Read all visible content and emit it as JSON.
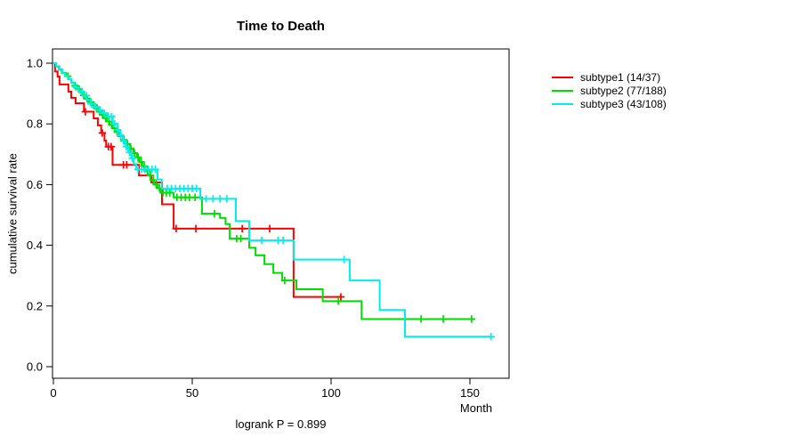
{
  "chart_data": {
    "type": "line",
    "variant": "kaplan-meier-step-survival",
    "title": "Time to Death",
    "xlabel": "Month",
    "ylabel": "cumulative survival rate",
    "annotation": "logrank P = 0.899",
    "xlim": [
      0,
      164
    ],
    "ylim": [
      0,
      1.0
    ],
    "grid": false,
    "legend_position": "right-outside",
    "x_ticks": [
      {
        "value": 0,
        "label": "0"
      },
      {
        "value": 50,
        "label": "50"
      },
      {
        "value": 100,
        "label": "100"
      },
      {
        "value": 150,
        "label": "150"
      }
    ],
    "y_ticks": [
      {
        "value": 0.0,
        "label": "0.0"
      },
      {
        "value": 0.2,
        "label": "0.2"
      },
      {
        "value": 0.4,
        "label": "0.4"
      },
      {
        "value": 0.6,
        "label": "0.6"
      },
      {
        "value": 0.8,
        "label": "0.8"
      },
      {
        "value": 1.0,
        "label": "1.0"
      }
    ],
    "series": [
      {
        "name": "subtype1 (14/37)",
        "color": "#ff0000",
        "steps": [
          [
            0,
            1.0
          ],
          [
            0.6,
            0.973
          ],
          [
            1.5,
            0.956
          ],
          [
            2.2,
            0.93
          ],
          [
            5.4,
            0.906
          ],
          [
            6.4,
            0.886
          ],
          [
            8,
            0.868
          ],
          [
            11,
            0.84
          ],
          [
            14.5,
            0.818
          ],
          [
            16,
            0.795
          ],
          [
            17.2,
            0.77
          ],
          [
            18.4,
            0.745
          ],
          [
            19,
            0.725
          ],
          [
            21.3,
            0.665
          ],
          [
            30.8,
            0.63
          ],
          [
            35.3,
            0.607
          ],
          [
            39.1,
            0.535
          ],
          [
            43.3,
            0.455
          ],
          [
            86.5,
            0.23
          ]
        ],
        "end_month": 104,
        "censor_months": [
          11.5,
          17.6,
          19.8,
          20.8,
          25.2,
          26.4,
          44.2,
          51.3,
          68,
          77.9,
          103.5
        ]
      },
      {
        "name": "subtype2 (77/188)",
        "color": "#00dd00",
        "steps": [
          [
            0,
            1.0
          ],
          [
            1,
            0.989
          ],
          [
            2,
            0.979
          ],
          [
            3,
            0.968
          ],
          [
            4.5,
            0.957
          ],
          [
            5.5,
            0.947
          ],
          [
            6.5,
            0.936
          ],
          [
            7.5,
            0.926
          ],
          [
            8.5,
            0.915
          ],
          [
            9.5,
            0.904
          ],
          [
            10.5,
            0.894
          ],
          [
            11.7,
            0.883
          ],
          [
            12.8,
            0.872
          ],
          [
            14,
            0.862
          ],
          [
            15,
            0.851
          ],
          [
            16,
            0.84
          ],
          [
            17,
            0.83
          ],
          [
            18.1,
            0.819
          ],
          [
            19.2,
            0.808
          ],
          [
            20.2,
            0.797
          ],
          [
            21.3,
            0.786
          ],
          [
            22.4,
            0.773
          ],
          [
            23.7,
            0.76
          ],
          [
            25,
            0.747
          ],
          [
            26.3,
            0.734
          ],
          [
            27.6,
            0.718
          ],
          [
            28.8,
            0.704
          ],
          [
            30,
            0.69
          ],
          [
            31,
            0.675
          ],
          [
            32,
            0.66
          ],
          [
            33,
            0.645
          ],
          [
            34,
            0.63
          ],
          [
            35,
            0.615
          ],
          [
            36.2,
            0.6
          ],
          [
            37.5,
            0.588
          ],
          [
            38.8,
            0.573
          ],
          [
            43.3,
            0.558
          ],
          [
            53.5,
            0.504
          ],
          [
            60,
            0.49
          ],
          [
            62,
            0.47
          ],
          [
            63.5,
            0.422
          ],
          [
            70.5,
            0.392
          ],
          [
            72.8,
            0.367
          ],
          [
            76,
            0.338
          ],
          [
            79.2,
            0.309
          ],
          [
            82.4,
            0.284
          ],
          [
            87.5,
            0.255
          ],
          [
            97,
            0.216
          ],
          [
            111,
            0.157
          ]
        ],
        "end_month": 151.6,
        "censor_months": [
          5.2,
          7.8,
          9.3,
          10.9,
          12.2,
          13.4,
          14.6,
          15.7,
          16.6,
          17.7,
          18.9,
          20,
          21,
          22,
          23,
          24.2,
          25.4,
          26.7,
          27.9,
          29.2,
          30.5,
          31.6,
          32.7,
          33.8,
          34.9,
          36,
          37,
          38.2,
          39.5,
          40.7,
          41.9,
          44.5,
          46,
          47.5,
          49,
          51,
          58,
          66,
          67.5,
          83.3,
          102.6,
          132.4,
          140.4,
          150.6
        ]
      },
      {
        "name": "subtype3 (43/108)",
        "color": "#00eeee",
        "steps": [
          [
            0,
            1.0
          ],
          [
            1,
            0.99
          ],
          [
            2.2,
            0.98
          ],
          [
            3.2,
            0.969
          ],
          [
            4.2,
            0.958
          ],
          [
            5.3,
            0.947
          ],
          [
            6.4,
            0.935
          ],
          [
            7.5,
            0.921
          ],
          [
            9,
            0.907
          ],
          [
            10.5,
            0.893
          ],
          [
            12,
            0.879
          ],
          [
            13.5,
            0.866
          ],
          [
            15,
            0.856
          ],
          [
            16.5,
            0.845
          ],
          [
            18,
            0.835
          ],
          [
            19.5,
            0.824
          ],
          [
            21.4,
            0.8
          ],
          [
            23,
            0.78
          ],
          [
            24,
            0.762
          ],
          [
            25,
            0.744
          ],
          [
            26,
            0.725
          ],
          [
            27,
            0.706
          ],
          [
            28,
            0.687
          ],
          [
            28.9,
            0.668
          ],
          [
            29.8,
            0.65
          ],
          [
            37.5,
            0.617
          ],
          [
            39,
            0.587
          ],
          [
            52.9,
            0.553
          ],
          [
            65.7,
            0.48
          ],
          [
            70.5,
            0.416
          ],
          [
            86.5,
            0.353
          ],
          [
            106.7,
            0.284
          ],
          [
            117.5,
            0.187
          ],
          [
            126.6,
            0.099
          ]
        ],
        "end_month": 157.6,
        "censor_months": [
          8.2,
          10.1,
          11.9,
          13.6,
          15.2,
          16.8,
          18.3,
          19.8,
          21,
          22.1,
          23.2,
          24.3,
          25.3,
          26.3,
          27.4,
          28.4,
          30.5,
          31.8,
          33,
          34.2,
          35.5,
          36.7,
          41,
          42.5,
          44,
          45.5,
          47,
          48.5,
          50,
          51.5,
          55,
          57.5,
          60,
          62.5,
          75,
          80.9,
          82.7,
          104.7,
          157.6
        ]
      }
    ]
  }
}
